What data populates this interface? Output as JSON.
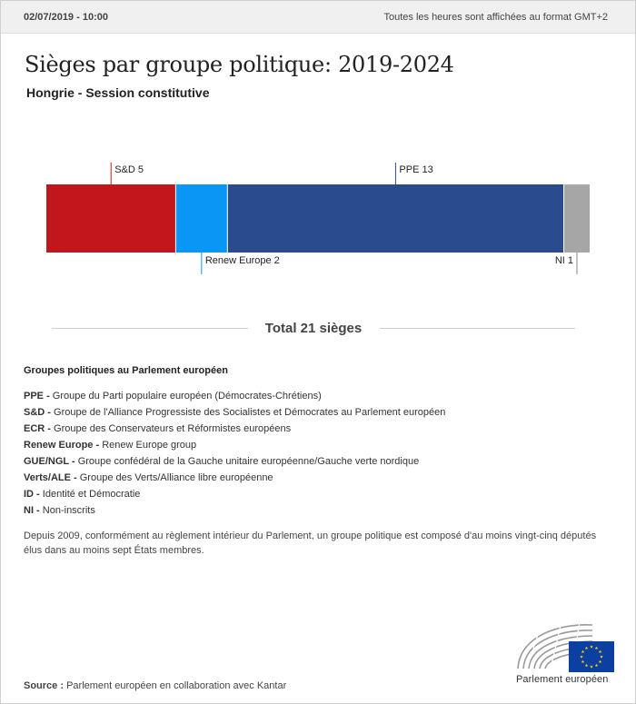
{
  "header": {
    "date": "02/07/2019 - 10:00",
    "timezone_note": "Toutes les heures sont affichées au format GMT+2"
  },
  "title": "Sièges par groupe politique: 2019-2024",
  "subtitle": "Hongrie - Session constitutive",
  "chart_data": {
    "type": "bar",
    "orientation": "stacked-horizontal",
    "categories": [
      "S&D",
      "Renew Europe",
      "PPE",
      "NI"
    ],
    "values": [
      5,
      2,
      13,
      1
    ],
    "labels": [
      "S&D 5",
      "Renew Europe 2",
      "PPE 13",
      "NI 1"
    ],
    "label_positions": [
      "above",
      "below",
      "above",
      "below"
    ],
    "colors": [
      "#c0161c",
      "#0a96f5",
      "#2b4b8f",
      "#a6a6a6"
    ],
    "total": 21
  },
  "total_label": "Total 21 sièges",
  "legend": {
    "title": "Groupes politiques au Parlement européen",
    "items": [
      {
        "abbr": "PPE",
        "desc": "Groupe du Parti populaire européen (Démocrates-Chrétiens)"
      },
      {
        "abbr": "S&D",
        "desc": "Groupe de l'Alliance Progressiste des Socialistes et Démocrates au Parlement européen"
      },
      {
        "abbr": "ECR",
        "desc": "Groupe des Conservateurs et Réformistes européens"
      },
      {
        "abbr": "Renew Europe",
        "desc": "Renew Europe group"
      },
      {
        "abbr": "GUE/NGL",
        "desc": "Groupe confédéral de la Gauche unitaire européenne/Gauche verte nordique"
      },
      {
        "abbr": "Verts/ALE",
        "desc": "Groupe des Verts/Alliance libre européenne"
      },
      {
        "abbr": "ID",
        "desc": "Identité et Démocratie"
      },
      {
        "abbr": "NI",
        "desc": "Non-inscrits"
      }
    ]
  },
  "note": "Depuis 2009, conformément au règlement intérieur du Parlement, un groupe politique est composé d'au moins vingt-cinq députés élus dans au moins sept États membres.",
  "source": {
    "label": "Source :",
    "text": "Parlement européen en collaboration avec Kantar"
  },
  "logo": {
    "icon": "european-parliament-hemicycle-eu-flag",
    "text": "Parlement européen"
  }
}
